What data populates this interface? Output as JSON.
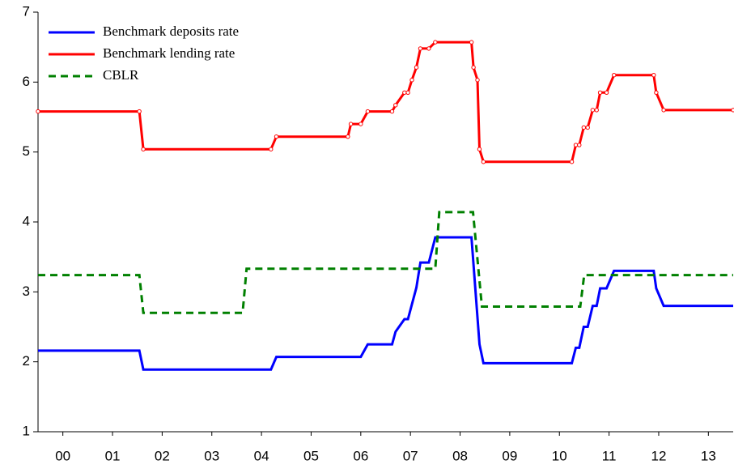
{
  "chart_data": {
    "type": "line",
    "xlim": [
      0,
      14
    ],
    "xticks": [
      {
        "value": 0.5,
        "label": "00"
      },
      {
        "value": 1.5,
        "label": "01"
      },
      {
        "value": 2.5,
        "label": "02"
      },
      {
        "value": 3.5,
        "label": "03"
      },
      {
        "value": 4.5,
        "label": "04"
      },
      {
        "value": 5.5,
        "label": "05"
      },
      {
        "value": 6.5,
        "label": "06"
      },
      {
        "value": 7.5,
        "label": "07"
      },
      {
        "value": 8.5,
        "label": "08"
      },
      {
        "value": 9.5,
        "label": "09"
      },
      {
        "value": 10.5,
        "label": "10"
      },
      {
        "value": 11.5,
        "label": "11"
      },
      {
        "value": 12.5,
        "label": "12"
      },
      {
        "value": 13.5,
        "label": "13"
      }
    ],
    "ylim": [
      1,
      7
    ],
    "yticks": [
      1,
      2,
      3,
      4,
      5,
      6,
      7
    ],
    "grid": false,
    "legend": "upper left",
    "series": [
      {
        "name": "Benchmark deposits rate",
        "color": "#0000ff",
        "style": "solid",
        "markers": false,
        "x": [
          0,
          2.04,
          2.12,
          4.69,
          4.8,
          6.5,
          6.64,
          7.13,
          7.2,
          7.38,
          7.45,
          7.62,
          7.7,
          7.87,
          8.0,
          8.73,
          8.89,
          8.97,
          10.75,
          10.83,
          10.9,
          10.99,
          11.07,
          11.17,
          11.25,
          11.32,
          11.45,
          11.6,
          12.4,
          12.45,
          12.6,
          14
        ],
        "values": [
          2.16,
          2.16,
          1.89,
          1.89,
          2.07,
          2.07,
          2.25,
          2.25,
          2.43,
          2.61,
          2.61,
          3.06,
          3.42,
          3.42,
          3.78,
          3.78,
          2.25,
          1.98,
          1.98,
          2.2,
          2.2,
          2.5,
          2.5,
          2.8,
          2.8,
          3.05,
          3.05,
          3.3,
          3.3,
          3.05,
          2.8,
          2.8
        ]
      },
      {
        "name": "Benchmark lending rate",
        "color": "#ff0000",
        "style": "solid",
        "markers": true,
        "x": [
          0,
          2.04,
          2.12,
          4.69,
          4.8,
          6.24,
          6.3,
          6.5,
          6.64,
          7.13,
          7.2,
          7.38,
          7.45,
          7.53,
          7.62,
          7.7,
          7.87,
          8.0,
          8.73,
          8.77,
          8.85,
          8.89,
          8.97,
          10.75,
          10.83,
          10.9,
          10.99,
          11.07,
          11.17,
          11.25,
          11.32,
          11.45,
          11.6,
          12.4,
          12.45,
          12.6,
          14
        ],
        "values": [
          5.58,
          5.58,
          5.04,
          5.04,
          5.22,
          5.22,
          5.4,
          5.4,
          5.58,
          5.58,
          5.67,
          5.85,
          5.85,
          6.03,
          6.21,
          6.48,
          6.48,
          6.57,
          6.57,
          6.21,
          6.03,
          5.04,
          4.86,
          4.86,
          5.1,
          5.1,
          5.35,
          5.35,
          5.6,
          5.6,
          5.85,
          5.85,
          6.1,
          6.1,
          5.85,
          5.6,
          5.6
        ]
      },
      {
        "name": "CBLR",
        "color": "#008000",
        "style": "dashed",
        "markers": false,
        "x": [
          0,
          2.04,
          2.12,
          4.12,
          4.2,
          8.0,
          8.08,
          8.76,
          8.94,
          10.92,
          11.0,
          14
        ],
        "values": [
          3.24,
          3.24,
          2.7,
          2.7,
          3.33,
          3.33,
          4.14,
          4.14,
          2.79,
          2.79,
          3.24,
          3.24
        ]
      }
    ]
  }
}
